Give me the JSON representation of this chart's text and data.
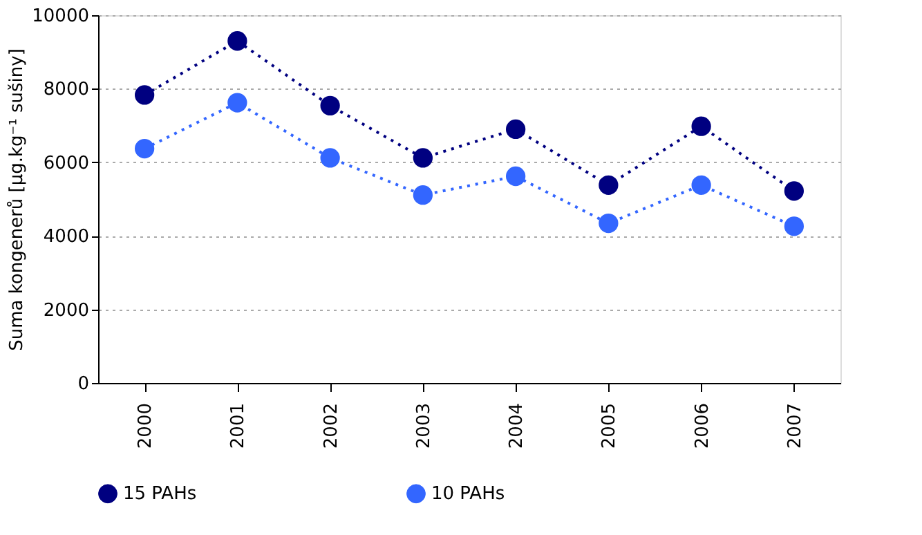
{
  "chart_data": {
    "type": "line",
    "ylabel": "Suma kongenerů [µg.kg⁻¹ sušiny]",
    "categories": [
      "2000",
      "2001",
      "2002",
      "2003",
      "2004",
      "2005",
      "2006",
      "2007"
    ],
    "series": [
      {
        "name": "15 PAHs",
        "color": "#000080",
        "values": [
          7830,
          9300,
          7540,
          6120,
          6900,
          5380,
          6980,
          5220
        ]
      },
      {
        "name": "10 PAHs",
        "color": "#3366ff",
        "values": [
          6370,
          7620,
          6120,
          5110,
          5620,
          4340,
          5380,
          4260
        ]
      }
    ],
    "ylim": [
      0,
      10000
    ],
    "yticks": [
      0,
      2000,
      4000,
      6000,
      8000,
      10000
    ],
    "grid": "y",
    "legend": "bottom",
    "marker": "circle",
    "line_style": "dotted"
  }
}
